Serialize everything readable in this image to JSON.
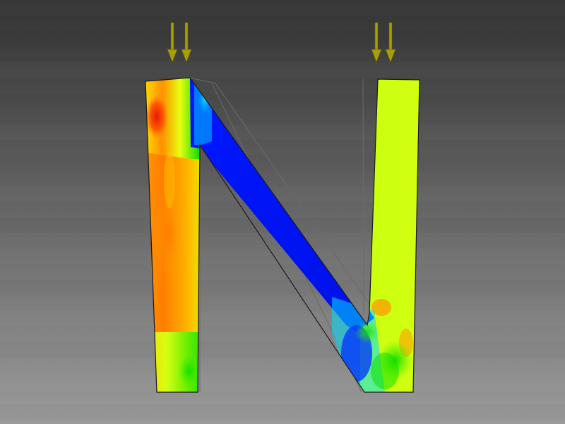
{
  "scene": {
    "background_top": "#333333",
    "background_bottom": "#999999",
    "load_arrow_color": "#a89e0a",
    "load_arrow_outline": "#5e5a0c",
    "outline_color": "#1a1a1a",
    "undeformed_outline_color": "#6b6b6b"
  },
  "load_groups": [
    {
      "name": "left-load",
      "arrow_count": 2
    },
    {
      "name": "right-load",
      "arrow_count": 2
    }
  ],
  "stress_colors": {
    "high": "#e81a06",
    "upper_mid": "#ff8a00",
    "mid": "#d8ff10",
    "lower_mid": "#12e000",
    "low": "#0010f2",
    "cyan": "#00d8ff"
  },
  "shape": {
    "letter": "N"
  }
}
